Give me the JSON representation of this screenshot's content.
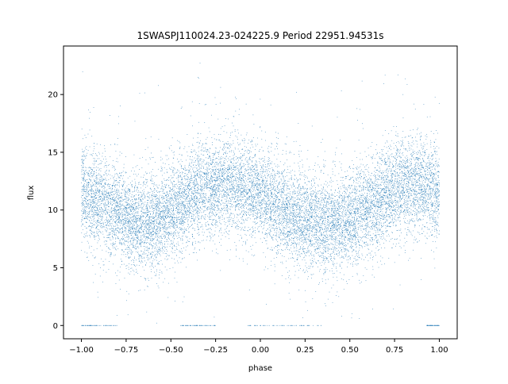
{
  "chart_data": {
    "type": "scatter",
    "title": "1SWASPJ110024.23-024225.9 Period 22951.94531s",
    "xlabel": "phase",
    "ylabel": "flux",
    "xlim": [
      -1.1,
      1.1
    ],
    "ylim": [
      -1.15,
      24.2
    ],
    "x_ticks": [
      -1.0,
      -0.75,
      -0.5,
      -0.25,
      0.0,
      0.25,
      0.5,
      0.75,
      1.0
    ],
    "x_tick_labels": [
      "−1.00",
      "−0.75",
      "−0.50",
      "−0.25",
      "0.00",
      "0.25",
      "0.50",
      "0.75",
      "1.00"
    ],
    "y_ticks": [
      0,
      5,
      10,
      15,
      20
    ],
    "y_tick_labels": [
      "0",
      "5",
      "10",
      "15",
      "20"
    ],
    "grid": false,
    "marker_color": "#1f77b4",
    "series": [
      {
        "phase_range": [
          -1.0,
          1.0
        ],
        "mean_flux_curve": {
          "x": [
            -1.0,
            -0.9,
            -0.8,
            -0.7,
            -0.6,
            -0.5,
            -0.4,
            -0.3,
            -0.2,
            -0.1,
            0.0,
            0.1,
            0.2,
            0.3,
            0.4,
            0.5,
            0.6,
            0.7,
            0.8,
            0.9,
            1.0
          ],
          "y": [
            11.5,
            10.8,
            9.8,
            9.0,
            9.0,
            9.7,
            11.0,
            12.0,
            12.3,
            12.0,
            11.3,
            10.3,
            9.4,
            8.8,
            8.7,
            9.2,
            10.2,
            11.4,
            12.1,
            12.1,
            11.5
          ]
        },
        "typical_spread": 4.5,
        "outlier_flux_range": [
          0,
          23
        ],
        "zero_flux_phase_ranges": [
          [
            -1.0,
            -0.8
          ],
          [
            -0.45,
            -0.25
          ],
          [
            -0.07,
            0.35
          ],
          [
            0.93,
            1.0
          ]
        ]
      }
    ]
  }
}
